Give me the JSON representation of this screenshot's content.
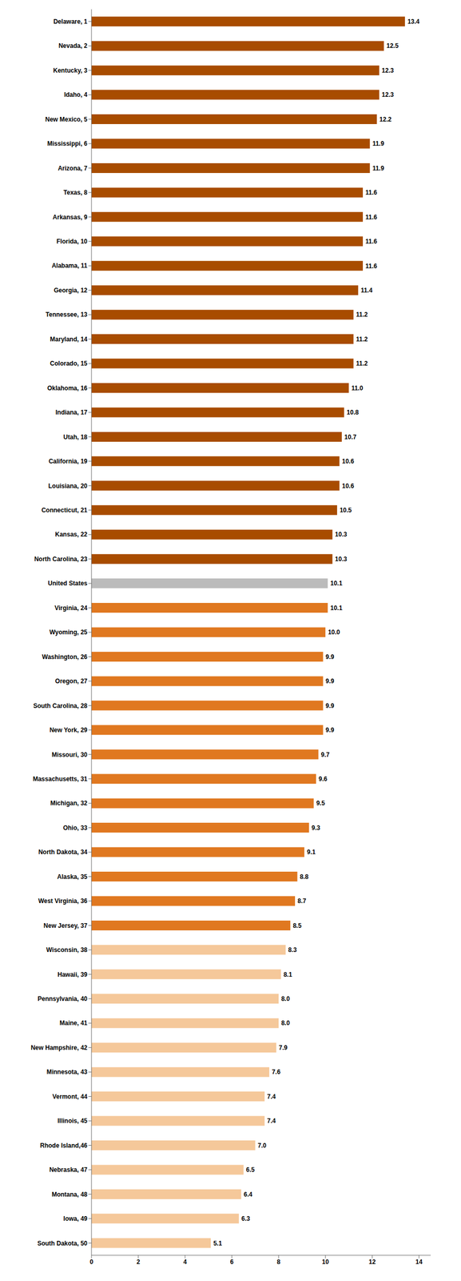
{
  "chart_data": {
    "type": "bar",
    "orientation": "horizontal",
    "categories": [
      "Delaware, 1",
      "Nevada, 2",
      "Kentucky, 3",
      "Idaho, 4",
      "New Mexico, 5",
      "Mississippi, 6",
      "Arizona, 7",
      "Texas, 8",
      "Arkansas, 9",
      "Florida, 10",
      "Alabama, 11",
      "Georgia, 12",
      "Tennessee, 13",
      "Maryland, 14",
      "Colorado, 15",
      "Oklahoma, 16",
      "Indiana, 17",
      "Utah, 18",
      "California, 19",
      "Louisiana, 20",
      "Connecticut, 21",
      "Kansas, 22",
      "North Carolina, 23",
      "United States",
      "Virginia, 24",
      "Wyoming, 25",
      "Washington, 26",
      "Oregon, 27",
      "South Carolina, 28",
      "New York, 29",
      "Missouri, 30",
      "Massachusetts, 31",
      "Michigan, 32",
      "Ohio, 33",
      "North Dakota, 34",
      "Alaska, 35",
      "West Virginia, 36",
      "New Jersey, 37",
      "Wisconsin, 38",
      "Hawaii, 39",
      "Pennsylvania, 40",
      "Maine, 41",
      "New Hampshire, 42",
      "Minnesota, 43",
      "Vermont, 44",
      "Illinois, 45",
      "Rhode Island,46",
      "Nebraska, 47",
      "Montana, 48",
      "Iowa, 49",
      "South Dakota, 50"
    ],
    "values": [
      13.4,
      12.5,
      12.3,
      12.3,
      12.2,
      11.9,
      11.9,
      11.6,
      11.6,
      11.6,
      11.6,
      11.4,
      11.2,
      11.2,
      11.2,
      11.0,
      10.8,
      10.7,
      10.6,
      10.6,
      10.5,
      10.3,
      10.3,
      10.1,
      10.1,
      10.0,
      9.9,
      9.9,
      9.9,
      9.9,
      9.7,
      9.6,
      9.5,
      9.3,
      9.1,
      8.8,
      8.7,
      8.5,
      8.3,
      8.1,
      8.0,
      8.0,
      7.9,
      7.6,
      7.4,
      7.4,
      7.0,
      6.5,
      6.4,
      6.3,
      5.1
    ],
    "value_labels": [
      "13.4",
      "12.5",
      "12.3",
      "12.3",
      "12.2",
      "11.9",
      "11.9",
      "11.6",
      "11.6",
      "11.6",
      "11.6",
      "11.4",
      "11.2",
      "11.2",
      "11.2",
      "11.0",
      "10.8",
      "10.7",
      "10.6",
      "10.6",
      "10.5",
      "10.3",
      "10.3",
      "10.1",
      "10.1",
      "10.0",
      "9.9",
      "9.9",
      "9.9",
      "9.9",
      "9.7",
      "9.6",
      "9.5",
      "9.3",
      "9.1",
      "8.8",
      "8.7",
      "8.5",
      "8.3",
      "8.1",
      "8.0",
      "8.0",
      "7.9",
      "7.6",
      "7.4",
      "7.4",
      "7.0",
      "6.5",
      "6.4",
      "6.3",
      "5.1"
    ],
    "colors": [
      "#a84c00",
      "#a84c00",
      "#a84c00",
      "#a84c00",
      "#a84c00",
      "#a84c00",
      "#a84c00",
      "#a84c00",
      "#a84c00",
      "#a84c00",
      "#a84c00",
      "#a84c00",
      "#a84c00",
      "#a84c00",
      "#a84c00",
      "#a84c00",
      "#a84c00",
      "#a84c00",
      "#a84c00",
      "#a84c00",
      "#a84c00",
      "#a84c00",
      "#a84c00",
      "#bbbbbb",
      "#e07820",
      "#e07820",
      "#e07820",
      "#e07820",
      "#e07820",
      "#e07820",
      "#e07820",
      "#e07820",
      "#e07820",
      "#e07820",
      "#e07820",
      "#e07820",
      "#e07820",
      "#e07820",
      "#f5c89a",
      "#f5c89a",
      "#f5c89a",
      "#f5c89a",
      "#f5c89a",
      "#f5c89a",
      "#f5c89a",
      "#f5c89a",
      "#f5c89a",
      "#f5c89a",
      "#f5c89a",
      "#f5c89a",
      "#f5c89a"
    ],
    "xlim": [
      0,
      14.5
    ],
    "xticks": [
      0,
      2,
      4,
      6,
      8,
      10,
      12,
      14
    ],
    "grid": false,
    "data_labels": true
  }
}
